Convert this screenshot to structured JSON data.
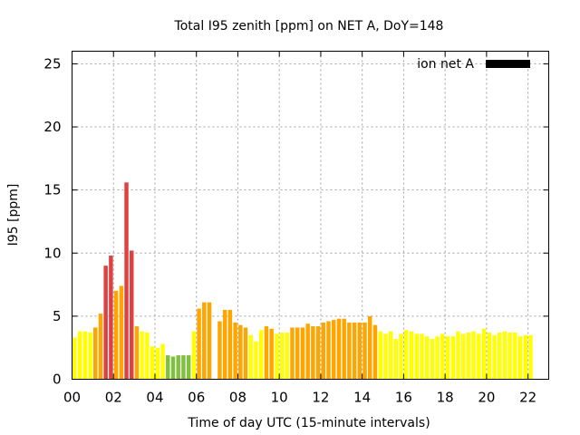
{
  "chart_data": {
    "type": "bar",
    "title": "Total I95 zenith [ppm] on NET A, DoY=148",
    "xlabel": "Time of day UTC (15-minute intervals)",
    "ylabel": "I95 [ppm]",
    "xlim": [
      0,
      23
    ],
    "ylim": [
      0,
      26
    ],
    "x_ticks": [
      "00",
      "02",
      "04",
      "06",
      "08",
      "10",
      "12",
      "14",
      "16",
      "18",
      "20",
      "22"
    ],
    "y_ticks": [
      "0",
      "5",
      "10",
      "15",
      "20",
      "25"
    ],
    "grid": true,
    "legend": {
      "position": "top-right",
      "label": "ion net A",
      "color": "#000000"
    },
    "colors": {
      "yellow": "#ffff00",
      "orange": "#ffa500",
      "red": "#e04040",
      "green": "#80c040"
    },
    "series": [
      {
        "x": [
          0.0,
          0.25,
          0.5,
          0.75,
          1.0,
          1.25,
          1.5,
          1.75,
          2.0,
          2.25,
          2.5,
          2.75,
          3.0,
          3.25,
          3.5,
          3.75,
          4.0,
          4.25,
          4.5,
          4.75,
          5.0,
          5.25,
          5.5,
          5.75,
          6.0,
          6.25,
          6.5,
          6.75,
          7.0,
          7.25,
          7.5,
          7.75,
          8.0,
          8.25,
          8.5,
          8.75,
          9.0,
          9.25,
          9.5,
          9.75,
          10.0,
          10.25,
          10.5,
          10.75,
          11.0,
          11.25,
          11.5,
          11.75,
          12.0,
          12.25,
          12.5,
          12.75,
          13.0,
          13.25,
          13.5,
          13.75,
          14.0,
          14.25,
          14.5,
          14.75,
          15.0,
          15.25,
          15.5,
          15.75,
          16.0,
          16.25,
          16.5,
          16.75,
          17.0,
          17.25,
          17.5,
          17.75,
          18.0,
          18.25,
          18.5,
          18.75,
          19.0,
          19.25,
          19.5,
          19.75,
          20.0,
          20.25,
          20.5,
          20.75,
          21.0,
          21.25,
          21.5,
          21.75,
          22.0,
          22.25,
          22.5
        ],
        "values": [
          3.3,
          3.8,
          3.8,
          3.7,
          4.1,
          5.2,
          9.0,
          9.8,
          7.0,
          7.4,
          15.6,
          10.2,
          4.2,
          3.8,
          3.7,
          2.6,
          2.5,
          2.8,
          1.9,
          1.8,
          1.9,
          1.9,
          1.9,
          3.8,
          5.6,
          6.1,
          6.1,
          0,
          4.6,
          5.5,
          5.5,
          4.5,
          4.3,
          4.1,
          3.5,
          3.0,
          3.9,
          4.2,
          4.0,
          3.6,
          3.7,
          3.7,
          4.1,
          4.1,
          4.1,
          4.4,
          4.2,
          4.2,
          4.5,
          4.6,
          4.7,
          4.8,
          4.8,
          4.5,
          4.5,
          4.5,
          4.5,
          5.0,
          4.3,
          3.8,
          3.6,
          3.8,
          3.2,
          3.6,
          3.9,
          3.8,
          3.6,
          3.6,
          3.4,
          3.2,
          3.4,
          3.6,
          3.4,
          3.4,
          3.8,
          3.6,
          3.7,
          3.8,
          3.6,
          4.0,
          3.7,
          3.5,
          3.7,
          3.8,
          3.7,
          3.7,
          3.4,
          3.5,
          3.5,
          0,
          0
        ],
        "classes": [
          "yellow",
          "yellow",
          "yellow",
          "yellow",
          "orange",
          "orange",
          "red",
          "red",
          "orange",
          "orange",
          "red",
          "red",
          "orange",
          "yellow",
          "yellow",
          "yellow",
          "yellow",
          "yellow",
          "green",
          "green",
          "green",
          "green",
          "green",
          "yellow",
          "orange",
          "orange",
          "orange",
          "orange",
          "orange",
          "orange",
          "orange",
          "orange",
          "orange",
          "orange",
          "yellow",
          "yellow",
          "yellow",
          "orange",
          "orange",
          "yellow",
          "yellow",
          "yellow",
          "orange",
          "orange",
          "orange",
          "orange",
          "orange",
          "orange",
          "orange",
          "orange",
          "orange",
          "orange",
          "orange",
          "orange",
          "orange",
          "orange",
          "orange",
          "orange",
          "orange",
          "yellow",
          "yellow",
          "yellow",
          "yellow",
          "yellow",
          "yellow",
          "yellow",
          "yellow",
          "yellow",
          "yellow",
          "yellow",
          "yellow",
          "yellow",
          "yellow",
          "yellow",
          "yellow",
          "yellow",
          "yellow",
          "yellow",
          "yellow",
          "yellow",
          "yellow",
          "yellow",
          "yellow",
          "yellow",
          "yellow",
          "yellow",
          "yellow",
          "yellow",
          "yellow",
          "yellow",
          "yellow"
        ]
      }
    ]
  }
}
